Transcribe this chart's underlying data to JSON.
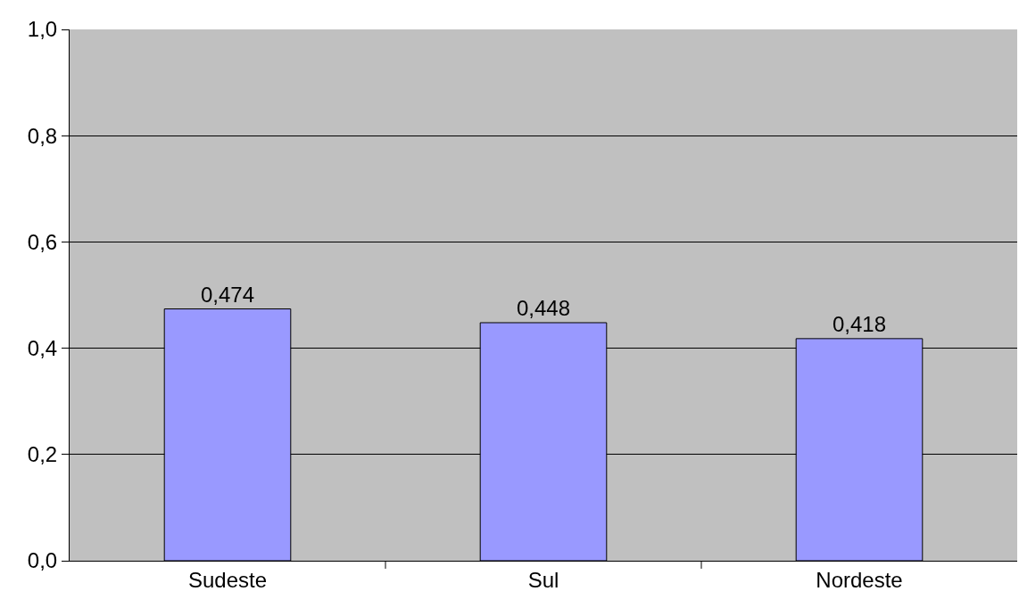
{
  "chart_data": {
    "type": "bar",
    "categories": [
      "Sudeste",
      "Sul",
      "Nordeste"
    ],
    "values": [
      0.474,
      0.448,
      0.418
    ],
    "value_labels": [
      "0,474",
      "0,448",
      "0,418"
    ],
    "color": "#9999ff",
    "ylim": [
      0,
      1
    ],
    "yticks": [
      {
        "value": 0,
        "label": "0,0"
      },
      {
        "value": 0.2,
        "label": "0,2"
      },
      {
        "value": 0.4,
        "label": "0,4"
      },
      {
        "value": 0.6,
        "label": "0,6"
      },
      {
        "value": 0.8,
        "label": "0,8"
      },
      {
        "value": 1,
        "label": "1,0"
      }
    ],
    "grid": "y",
    "legend": false
  }
}
